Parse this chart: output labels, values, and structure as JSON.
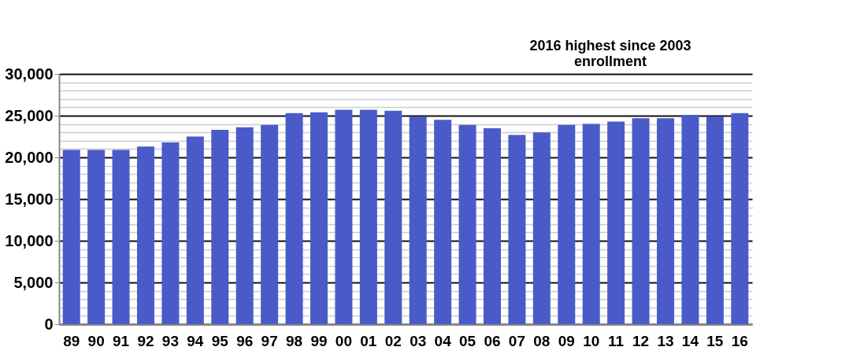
{
  "chart_data": {
    "type": "bar",
    "categories": [
      "89",
      "90",
      "91",
      "92",
      "93",
      "94",
      "95",
      "96",
      "97",
      "98",
      "99",
      "00",
      "01",
      "02",
      "03",
      "04",
      "05",
      "06",
      "07",
      "08",
      "09",
      "10",
      "11",
      "12",
      "13",
      "14",
      "15",
      "16"
    ],
    "values": [
      20900,
      20900,
      20900,
      21300,
      21800,
      22500,
      23300,
      23600,
      23900,
      25300,
      25400,
      25700,
      25700,
      25600,
      24900,
      24500,
      23900,
      23500,
      22700,
      23000,
      23900,
      24000,
      24300,
      24700,
      24700,
      25100,
      24900,
      25300
    ],
    "color": "#4a5bc9",
    "ylim": [
      0,
      30000
    ],
    "yticks": [
      0,
      {
        "value": 1000,
        "label": null
      },
      {
        "value": 2000,
        "label": null
      },
      {
        "value": 3000,
        "label": null
      },
      {
        "value": 4000,
        "label": null
      },
      {
        "value": 5000,
        "label": "5,000"
      },
      {
        "value": 6000,
        "label": null
      },
      {
        "value": 7000,
        "label": null
      },
      {
        "value": 8000,
        "label": null
      },
      {
        "value": 9000,
        "label": null
      },
      {
        "value": 10000,
        "label": "10,000"
      },
      {
        "value": 11000,
        "label": null
      },
      {
        "value": 12000,
        "label": null
      },
      {
        "value": 13000,
        "label": null
      },
      {
        "value": 14000,
        "label": null
      },
      {
        "value": 15000,
        "label": "15,000"
      },
      {
        "value": 16000,
        "label": null
      },
      {
        "value": 17000,
        "label": null
      },
      {
        "value": 18000,
        "label": null
      },
      {
        "value": 19000,
        "label": null
      },
      {
        "value": 20000,
        "label": "20,000"
      },
      {
        "value": 21000,
        "label": null
      },
      {
        "value": 22000,
        "label": null
      },
      {
        "value": 23000,
        "label": null
      },
      {
        "value": 24000,
        "label": null
      },
      {
        "value": 25000,
        "label": "25,000"
      },
      {
        "value": 26000,
        "label": null
      },
      {
        "value": 27000,
        "label": null
      },
      {
        "value": 28000,
        "label": null
      },
      {
        "value": 29000,
        "label": null
      },
      {
        "value": 30000,
        "label": "30,000"
      }
    ],
    "grid": "y",
    "annotations": [
      "2016 highest since 2003\nenrollment"
    ]
  }
}
